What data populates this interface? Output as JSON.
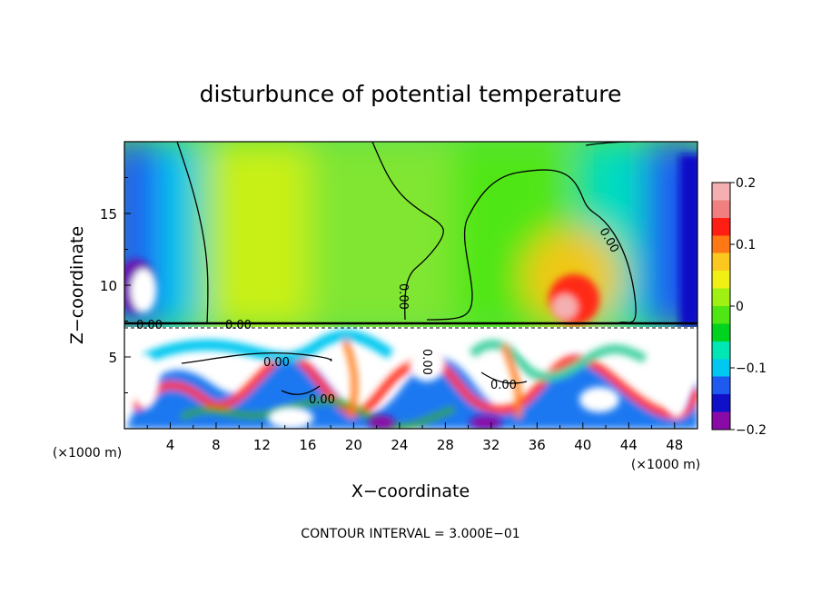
{
  "chart_data": {
    "type": "heatmap",
    "title": "disturbunce of potential temperature",
    "xlabel": "X−coordinate",
    "ylabel": "Z−coordinate",
    "x_unit": "(×1000 m)",
    "z_unit": "(×1000 m)",
    "xlim": [
      0,
      50
    ],
    "ylim": [
      0,
      20
    ],
    "x_ticks": [
      "4",
      "8",
      "12",
      "16",
      "20",
      "24",
      "28",
      "32",
      "36",
      "40",
      "44",
      "48"
    ],
    "y_ticks": [
      "5",
      "10",
      "15"
    ],
    "colorbar": {
      "range": [
        -0.2,
        0.2
      ],
      "tick_labels": [
        "0.2",
        "0.1",
        "0",
        "−0.1",
        "−0.2"
      ]
    },
    "contour_label": "0.00",
    "contour_interval_text": "CONTOUR INTERVAL = 3.000E−01",
    "regions": [
      {
        "x": [
          0,
          5
        ],
        "z": [
          7,
          20
        ],
        "value": -0.12
      },
      {
        "x": [
          1,
          3
        ],
        "z": [
          9,
          12
        ],
        "value": -0.2
      },
      {
        "x": [
          8,
          14
        ],
        "z": [
          13,
          20
        ],
        "value": 0.08
      },
      {
        "x": [
          36,
          43
        ],
        "z": [
          7.5,
          12
        ],
        "value": 0.18
      },
      {
        "x": [
          44,
          50
        ],
        "z": [
          8,
          20
        ],
        "value": -0.15
      }
    ]
  },
  "colors": {
    "colormap": [
      "#8a0aa8",
      "#1010c8",
      "#1e5af0",
      "#00c8f0",
      "#00e6b4",
      "#00d220",
      "#50e614",
      "#a0f014",
      "#f0f014",
      "#fac81e",
      "#ff7814",
      "#ff1e14",
      "#f08080",
      "#f4b0b0"
    ]
  }
}
